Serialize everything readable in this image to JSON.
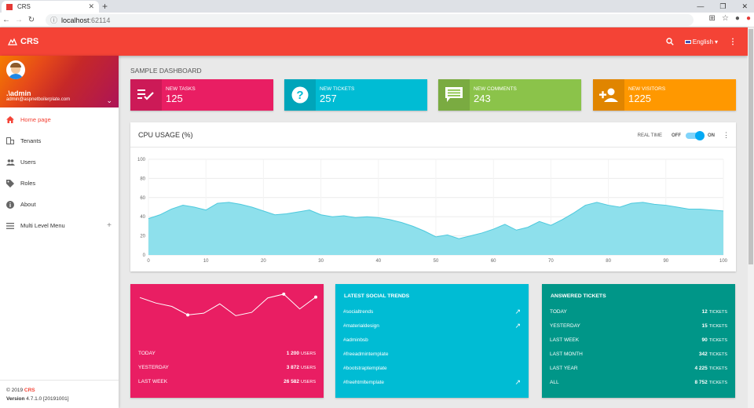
{
  "browser": {
    "tab_title": "CRS",
    "url_host": "localhost",
    "url_port": ":62114"
  },
  "header": {
    "app_name": "CRS",
    "language": "English"
  },
  "user": {
    "name": ".\\admin",
    "email": "admin@aspnetboilerplate.com"
  },
  "menu": [
    {
      "label": "Home page",
      "icon": "home-icon",
      "active": true
    },
    {
      "label": "Tenants",
      "icon": "tenants-icon"
    },
    {
      "label": "Users",
      "icon": "users-icon"
    },
    {
      "label": "Roles",
      "icon": "roles-icon"
    },
    {
      "label": "About",
      "icon": "info-icon"
    },
    {
      "label": "Multi Level Menu",
      "icon": "menu-icon",
      "expandable": true
    }
  ],
  "footer": {
    "copyright": "© 2019",
    "brand": "CRS",
    "version_label": "Version",
    "version": "4.7.1.0 [20191001]"
  },
  "page_title": "SAMPLE DASHBOARD",
  "info_boxes": [
    {
      "label": "NEW TASKS",
      "value": "125",
      "color": "#e91e63",
      "icon": "tasks-icon"
    },
    {
      "label": "NEW TICKETS",
      "value": "257",
      "color": "#00bcd4",
      "icon": "help-icon"
    },
    {
      "label": "NEW COMMENTS",
      "value": "243",
      "color": "#8bc34a",
      "icon": "comments-icon"
    },
    {
      "label": "NEW VISITORS",
      "value": "1225",
      "color": "#ff9800",
      "icon": "add-person-icon"
    }
  ],
  "cpu": {
    "title": "CPU USAGE (%)",
    "realtime_label": "REAL TIME",
    "off_label": "OFF",
    "on_label": "ON"
  },
  "chart_data": [
    {
      "type": "area",
      "title": "CPU USAGE (%)",
      "xlim": [
        0,
        100
      ],
      "ylim": [
        0,
        100
      ],
      "x_ticks": [
        0,
        10,
        20,
        30,
        40,
        50,
        60,
        70,
        80,
        90,
        100
      ],
      "y_ticks": [
        0,
        20,
        40,
        60,
        80,
        100
      ],
      "color": "#00bcd4",
      "x": [
        0,
        2,
        4,
        6,
        8,
        10,
        12,
        14,
        16,
        18,
        20,
        22,
        24,
        26,
        28,
        30,
        32,
        34,
        36,
        38,
        40,
        42,
        44,
        46,
        48,
        50,
        52,
        54,
        56,
        58,
        60,
        62,
        64,
        66,
        68,
        70,
        72,
        74,
        76,
        78,
        80,
        82,
        84,
        86,
        88,
        90,
        92,
        94,
        96,
        98,
        100
      ],
      "y": [
        38,
        42,
        48,
        52,
        50,
        47,
        54,
        55,
        53,
        50,
        46,
        42,
        43,
        45,
        47,
        42,
        40,
        41,
        39,
        40,
        39,
        37,
        34,
        30,
        25,
        19,
        21,
        17,
        20,
        23,
        27,
        32,
        26,
        29,
        35,
        31,
        37,
        44,
        52,
        55,
        52,
        50,
        54,
        55,
        53,
        52,
        50,
        48,
        48,
        47,
        46
      ]
    },
    {
      "type": "line",
      "title": "",
      "color": "#ffffff",
      "x": [
        1,
        2,
        3,
        4,
        5,
        6,
        7,
        8,
        9,
        10,
        11,
        12
      ],
      "y": [
        83,
        70,
        62,
        42,
        46,
        68,
        40,
        48,
        82,
        91,
        56,
        84
      ]
    }
  ],
  "users_card": {
    "color": "#e91e63",
    "unit": "USERS",
    "rows": [
      {
        "label": "TODAY",
        "value": "1 200"
      },
      {
        "label": "YESTERDAY",
        "value": "3 872"
      },
      {
        "label": "LAST WEEK",
        "value": "26 582"
      }
    ]
  },
  "social_card": {
    "color": "#00bcd4",
    "title": "LATEST SOCIAL TRENDS",
    "items": [
      {
        "tag": "#socialtrends",
        "trending": true
      },
      {
        "tag": "#materialdesign",
        "trending": true
      },
      {
        "tag": "#adminbsb",
        "trending": false
      },
      {
        "tag": "#freeadmintemplate",
        "trending": false
      },
      {
        "tag": "#bootstraptemplate",
        "trending": false
      },
      {
        "tag": "#freehtmltemplate",
        "trending": true
      }
    ]
  },
  "tickets_card": {
    "color": "#009688",
    "title": "ANSWERED TICKETS",
    "unit": "TICKETS",
    "rows": [
      {
        "label": "TODAY",
        "value": "12"
      },
      {
        "label": "YESTERDAY",
        "value": "15"
      },
      {
        "label": "LAST WEEK",
        "value": "90"
      },
      {
        "label": "LAST MONTH",
        "value": "342"
      },
      {
        "label": "LAST YEAR",
        "value": "4 225"
      },
      {
        "label": "ALL",
        "value": "8 752"
      }
    ]
  }
}
